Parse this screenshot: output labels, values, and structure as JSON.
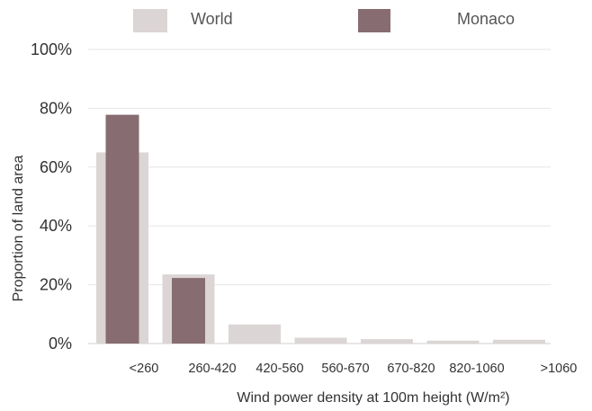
{
  "chart_data": {
    "type": "bar",
    "title": "",
    "xlabel": "Wind power density at 100m height (W/m²)",
    "ylabel": "Proportion of land area",
    "categories": [
      "<260",
      "260-420",
      "420-560",
      "560-670",
      "670-820",
      "820-1060",
      ">1060"
    ],
    "series": [
      {
        "name": "World",
        "values": [
          65,
          23.5,
          6.5,
          2,
          1.5,
          1,
          1.3
        ],
        "color": "#dcd5d5"
      },
      {
        "name": "Monaco",
        "values": [
          77.8,
          22.3,
          0,
          0,
          0,
          0,
          0
        ],
        "color": "#876d72"
      }
    ],
    "ylim": [
      0,
      100
    ],
    "yticks": [
      "0%",
      "20%",
      "40%",
      "60%",
      "80%",
      "100%"
    ],
    "grid": true,
    "legend_position": "top"
  }
}
